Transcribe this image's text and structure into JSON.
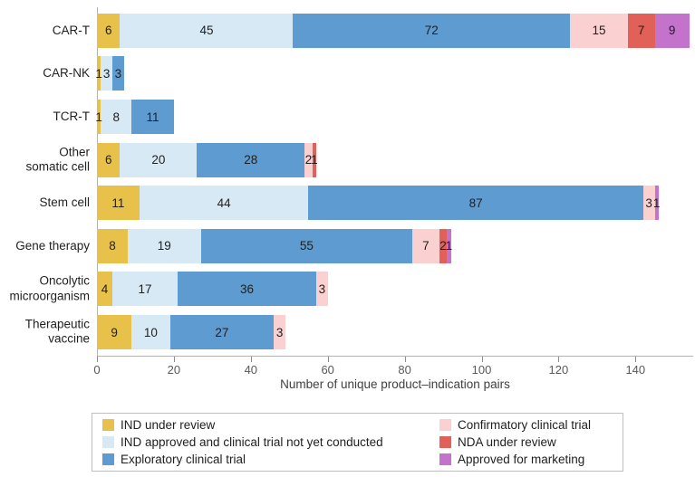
{
  "chart_data": {
    "type": "bar",
    "orientation": "horizontal",
    "stacked": true,
    "title": "",
    "xlabel": "Number of unique product–indication pairs",
    "ylabel": "",
    "xlim": [
      0,
      155
    ],
    "xticks": [
      0,
      20,
      40,
      60,
      80,
      100,
      120,
      140
    ],
    "grid": false,
    "legend_position": "bottom boxed, two columns",
    "categories": [
      "CAR-T",
      "CAR-NK",
      "TCR-T",
      "Other somatic cell",
      "Stem cell",
      "Gene therapy",
      "Oncolytic microorganism",
      "Therapeutic vaccine"
    ],
    "category_label_lines": [
      [
        "CAR-T"
      ],
      [
        "CAR-NK"
      ],
      [
        "TCR-T"
      ],
      [
        "Other",
        "somatic cell"
      ],
      [
        "Stem cell"
      ],
      [
        "Gene therapy"
      ],
      [
        "Oncolytic",
        "microorganism"
      ],
      [
        "Therapeutic",
        "vaccine"
      ]
    ],
    "series": [
      {
        "name": "IND under review",
        "color": "#e8c14b",
        "values": [
          6,
          1,
          1,
          6,
          11,
          8,
          4,
          9
        ]
      },
      {
        "name": "IND approved and clinical trial not yet conducted",
        "color": "#d7e9f5",
        "values": [
          45,
          3,
          8,
          20,
          44,
          19,
          17,
          10
        ]
      },
      {
        "name": "Exploratory clinical trial",
        "color": "#5e9bd1",
        "values": [
          72,
          3,
          11,
          28,
          87,
          55,
          36,
          27
        ]
      },
      {
        "name": "Confirmatory clinical trial",
        "color": "#fad1d0",
        "values": [
          15,
          0,
          0,
          2,
          3,
          7,
          3,
          3
        ]
      },
      {
        "name": "NDA under review",
        "color": "#e16158",
        "values": [
          7,
          0,
          0,
          1,
          0,
          2,
          0,
          0
        ]
      },
      {
        "name": "Approved for marketing",
        "color": "#c373cc",
        "values": [
          9,
          0,
          0,
          0,
          1,
          1,
          0,
          0
        ]
      }
    ],
    "legend_columns": [
      [
        0,
        1,
        2
      ],
      [
        3,
        4,
        5
      ]
    ]
  },
  "axis_style": {
    "axis_line_color": "#b3b3b3",
    "tick_color": "#8c8c8c",
    "tick_label_color": "#595959",
    "title_color": "#404040"
  }
}
